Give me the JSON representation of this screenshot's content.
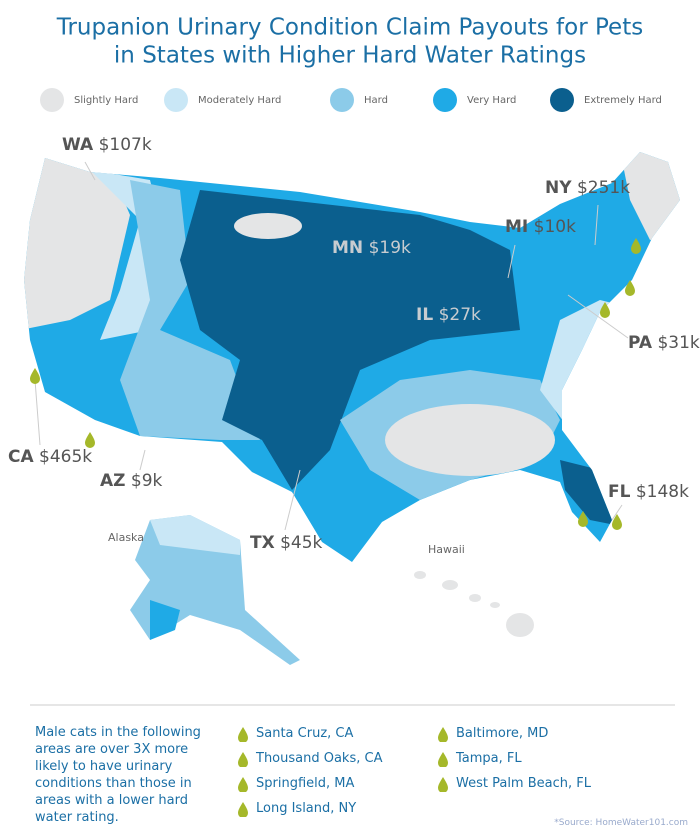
{
  "header": {
    "title_line1": "Trupanion Urinary Condition Claim Payouts for Pets",
    "title_line2": "in States with Higher Hard Water Ratings"
  },
  "legend": [
    {
      "label": "Slightly Hard",
      "color": "#e4e5e6"
    },
    {
      "label": "Moderately Hard",
      "color": "#c9e7f6"
    },
    {
      "label": "Hard",
      "color": "#8ccbe9"
    },
    {
      "label": "Very Hard",
      "color": "#1faae6"
    },
    {
      "label": "Extremely Hard",
      "color": "#0b5f8e"
    }
  ],
  "states": [
    {
      "abbr": "WA",
      "payout": "$107k"
    },
    {
      "abbr": "CA",
      "payout": "$465k"
    },
    {
      "abbr": "AZ",
      "payout": "$9k"
    },
    {
      "abbr": "TX",
      "payout": "$45k"
    },
    {
      "abbr": "MN",
      "payout": "$19k"
    },
    {
      "abbr": "MI",
      "payout": "$10k"
    },
    {
      "abbr": "NY",
      "payout": "$251k"
    },
    {
      "abbr": "IL",
      "payout": "$27k"
    },
    {
      "abbr": "PA",
      "payout": "$31k"
    },
    {
      "abbr": "FL",
      "payout": "$148k"
    }
  ],
  "places": [
    "Alaska",
    "Hawaii"
  ],
  "note": "Male cats in the following areas are over 3X more likely to have urinary conditions than those in areas with a lower hard water rating.",
  "cities": [
    "Santa Cruz, CA",
    "Thousand Oaks, CA",
    "Springfield, MA",
    "Long Island, NY",
    "Baltimore, MD",
    "Tampa, FL",
    "West Palm Beach, FL"
  ],
  "source": "*Source: HomeWater101.com"
}
